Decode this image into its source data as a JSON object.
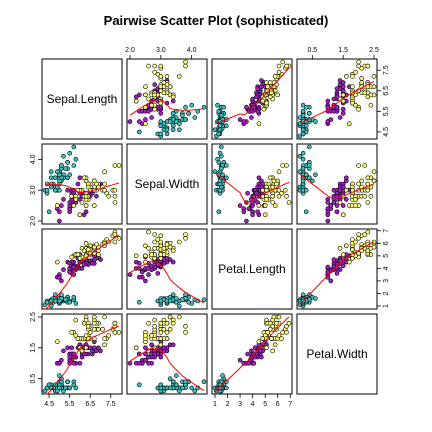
{
  "chart_data": {
    "type": "scatter",
    "title": "Pairwise Scatter Plot (sophisticated)",
    "variables": [
      "Sepal.Length",
      "Sepal.Width",
      "Petal.Length",
      "Petal.Width"
    ],
    "ranges": [
      [
        4.3,
        7.9
      ],
      [
        2.0,
        4.4
      ],
      [
        1.0,
        6.9
      ],
      [
        0.1,
        2.5
      ]
    ],
    "axis_ticks": [
      {
        "side": "bottom",
        "variable": 0,
        "ticks": [
          {
            "value": 4.5,
            "label": "4.5"
          },
          {
            "value": 5.5,
            "label": "5.5"
          },
          {
            "value": 6.5,
            "label": "6.5"
          },
          {
            "value": 7.5,
            "label": "7.5"
          }
        ]
      },
      {
        "side": "bottom",
        "variable": 2,
        "ticks": [
          {
            "value": 1,
            "label": "1"
          },
          {
            "value": 2,
            "label": "2"
          },
          {
            "value": 3,
            "label": "3"
          },
          {
            "value": 4,
            "label": "4"
          },
          {
            "value": 5,
            "label": "5"
          },
          {
            "value": 6,
            "label": "6"
          },
          {
            "value": 7,
            "label": "7"
          }
        ]
      },
      {
        "side": "top",
        "variable": 1,
        "ticks": [
          {
            "value": 2.0,
            "label": "2.0"
          },
          {
            "value": 3.0,
            "label": "3.0"
          },
          {
            "value": 4.0,
            "label": "4.0"
          }
        ]
      },
      {
        "side": "top",
        "variable": 3,
        "ticks": [
          {
            "value": 0.5,
            "label": "0.5"
          },
          {
            "value": 1.5,
            "label": "1.5"
          },
          {
            "value": 2.5,
            "label": "2.5"
          }
        ]
      },
      {
        "side": "left",
        "variable": 1,
        "ticks": [
          {
            "value": 2.0,
            "label": "2.0"
          },
          {
            "value": 3.0,
            "label": "3.0"
          },
          {
            "value": 4.0,
            "label": "4.0"
          }
        ]
      },
      {
        "side": "left",
        "variable": 3,
        "ticks": [
          {
            "value": 0.5,
            "label": "0.5"
          },
          {
            "value": 1.5,
            "label": "1.5"
          },
          {
            "value": 2.5,
            "label": "2.5"
          }
        ]
      },
      {
        "side": "right",
        "variable": 0,
        "ticks": [
          {
            "value": 4.5,
            "label": "4.5"
          },
          {
            "value": 5.5,
            "label": "5.5"
          },
          {
            "value": 6.5,
            "label": "6.5"
          },
          {
            "value": 7.5,
            "label": "7.5"
          }
        ]
      },
      {
        "side": "right",
        "variable": 2,
        "ticks": [
          {
            "value": 1,
            "label": "1"
          },
          {
            "value": 2,
            "label": "2"
          },
          {
            "value": 3,
            "label": "3"
          },
          {
            "value": 4,
            "label": "4"
          },
          {
            "value": 5,
            "label": "5"
          },
          {
            "value": 6,
            "label": "6"
          },
          {
            "value": 7,
            "label": "7"
          }
        ]
      }
    ],
    "groups": [
      {
        "color": "#40c0c0",
        "points": [
          [
            5.1,
            3.5,
            1.4,
            0.2
          ],
          [
            4.9,
            3.0,
            1.4,
            0.2
          ],
          [
            4.7,
            3.2,
            1.3,
            0.2
          ],
          [
            4.6,
            3.1,
            1.5,
            0.2
          ],
          [
            5.0,
            3.6,
            1.4,
            0.2
          ],
          [
            5.4,
            3.9,
            1.7,
            0.4
          ],
          [
            4.6,
            3.4,
            1.4,
            0.3
          ],
          [
            5.0,
            3.4,
            1.5,
            0.2
          ],
          [
            4.4,
            2.9,
            1.4,
            0.2
          ],
          [
            4.9,
            3.1,
            1.5,
            0.1
          ],
          [
            5.4,
            3.7,
            1.5,
            0.2
          ],
          [
            4.8,
            3.4,
            1.6,
            0.2
          ],
          [
            4.8,
            3.0,
            1.4,
            0.1
          ],
          [
            4.3,
            3.0,
            1.1,
            0.1
          ],
          [
            5.8,
            4.0,
            1.2,
            0.2
          ],
          [
            5.7,
            4.4,
            1.5,
            0.4
          ],
          [
            5.4,
            3.9,
            1.3,
            0.4
          ],
          [
            5.1,
            3.5,
            1.4,
            0.3
          ],
          [
            5.7,
            3.8,
            1.7,
            0.3
          ],
          [
            5.1,
            3.8,
            1.5,
            0.3
          ],
          [
            5.4,
            3.4,
            1.7,
            0.2
          ],
          [
            5.1,
            3.7,
            1.5,
            0.4
          ],
          [
            4.6,
            3.6,
            1.0,
            0.2
          ],
          [
            5.1,
            3.3,
            1.7,
            0.5
          ],
          [
            4.8,
            3.4,
            1.9,
            0.2
          ],
          [
            5.0,
            3.0,
            1.6,
            0.2
          ],
          [
            5.0,
            3.4,
            1.6,
            0.4
          ],
          [
            5.2,
            3.5,
            1.5,
            0.2
          ],
          [
            5.2,
            3.4,
            1.4,
            0.2
          ],
          [
            4.7,
            3.2,
            1.6,
            0.2
          ],
          [
            4.8,
            3.1,
            1.6,
            0.2
          ],
          [
            5.4,
            3.4,
            1.5,
            0.4
          ],
          [
            5.2,
            4.1,
            1.5,
            0.1
          ],
          [
            5.5,
            4.2,
            1.4,
            0.2
          ],
          [
            4.9,
            3.1,
            1.5,
            0.2
          ],
          [
            5.0,
            3.2,
            1.2,
            0.2
          ],
          [
            5.5,
            3.5,
            1.3,
            0.2
          ],
          [
            4.9,
            3.6,
            1.4,
            0.1
          ],
          [
            4.4,
            3.0,
            1.3,
            0.2
          ],
          [
            5.1,
            3.4,
            1.5,
            0.2
          ],
          [
            5.0,
            3.5,
            1.3,
            0.3
          ],
          [
            4.5,
            2.3,
            1.3,
            0.3
          ],
          [
            4.4,
            3.2,
            1.3,
            0.2
          ],
          [
            5.0,
            3.5,
            1.6,
            0.6
          ],
          [
            5.1,
            3.8,
            1.9,
            0.4
          ],
          [
            4.8,
            3.0,
            1.4,
            0.3
          ],
          [
            5.1,
            3.8,
            1.6,
            0.2
          ],
          [
            4.6,
            3.2,
            1.4,
            0.2
          ],
          [
            5.3,
            3.7,
            1.5,
            0.2
          ],
          [
            5.0,
            3.3,
            1.4,
            0.2
          ]
        ]
      },
      {
        "color": "#a020c0",
        "points": [
          [
            7.0,
            3.2,
            4.7,
            1.4
          ],
          [
            6.4,
            3.2,
            4.5,
            1.5
          ],
          [
            6.9,
            3.1,
            4.9,
            1.5
          ],
          [
            5.5,
            2.3,
            4.0,
            1.3
          ],
          [
            6.5,
            2.8,
            4.6,
            1.5
          ],
          [
            5.7,
            2.8,
            4.5,
            1.3
          ],
          [
            6.3,
            3.3,
            4.7,
            1.6
          ],
          [
            4.9,
            2.4,
            3.3,
            1.0
          ],
          [
            6.6,
            2.9,
            4.6,
            1.3
          ],
          [
            5.2,
            2.7,
            3.9,
            1.4
          ],
          [
            5.0,
            2.0,
            3.5,
            1.0
          ],
          [
            5.9,
            3.0,
            4.2,
            1.5
          ],
          [
            6.0,
            2.2,
            4.0,
            1.0
          ],
          [
            6.1,
            2.9,
            4.7,
            1.4
          ],
          [
            5.6,
            2.9,
            3.6,
            1.3
          ],
          [
            6.7,
            3.1,
            4.4,
            1.4
          ],
          [
            5.6,
            3.0,
            4.5,
            1.5
          ],
          [
            5.8,
            2.7,
            4.1,
            1.0
          ],
          [
            6.2,
            2.2,
            4.5,
            1.5
          ],
          [
            5.6,
            2.5,
            3.9,
            1.1
          ],
          [
            5.9,
            3.2,
            4.8,
            1.8
          ],
          [
            6.1,
            2.8,
            4.0,
            1.3
          ],
          [
            6.3,
            2.5,
            4.9,
            1.5
          ],
          [
            6.1,
            2.8,
            4.7,
            1.2
          ],
          [
            6.4,
            2.9,
            4.3,
            1.3
          ],
          [
            6.6,
            3.0,
            4.4,
            1.4
          ],
          [
            6.8,
            2.8,
            4.8,
            1.4
          ],
          [
            6.7,
            3.0,
            5.0,
            1.7
          ],
          [
            6.0,
            2.9,
            4.5,
            1.5
          ],
          [
            5.7,
            2.6,
            3.5,
            1.0
          ],
          [
            5.5,
            2.4,
            3.8,
            1.1
          ],
          [
            5.5,
            2.4,
            3.7,
            1.0
          ],
          [
            5.8,
            2.7,
            3.9,
            1.2
          ],
          [
            6.0,
            2.7,
            5.1,
            1.6
          ],
          [
            5.4,
            3.0,
            4.5,
            1.5
          ],
          [
            6.0,
            3.4,
            4.5,
            1.6
          ],
          [
            6.7,
            3.1,
            4.7,
            1.5
          ],
          [
            6.3,
            2.3,
            4.4,
            1.3
          ],
          [
            5.6,
            3.0,
            4.1,
            1.3
          ],
          [
            5.5,
            2.5,
            4.0,
            1.3
          ],
          [
            5.5,
            2.6,
            4.4,
            1.2
          ],
          [
            6.1,
            3.0,
            4.6,
            1.4
          ],
          [
            5.8,
            2.6,
            4.0,
            1.2
          ],
          [
            5.0,
            2.3,
            3.3,
            1.0
          ],
          [
            5.6,
            2.7,
            4.2,
            1.3
          ],
          [
            5.7,
            3.0,
            4.2,
            1.2
          ],
          [
            5.7,
            2.9,
            4.2,
            1.3
          ],
          [
            6.2,
            2.9,
            4.3,
            1.3
          ],
          [
            5.1,
            2.5,
            3.0,
            1.1
          ],
          [
            5.7,
            2.8,
            4.1,
            1.3
          ]
        ]
      },
      {
        "color": "#ffff80",
        "points": [
          [
            6.3,
            3.3,
            6.0,
            2.5
          ],
          [
            5.8,
            2.7,
            5.1,
            1.9
          ],
          [
            7.1,
            3.0,
            5.9,
            2.1
          ],
          [
            6.3,
            2.9,
            5.6,
            1.8
          ],
          [
            6.5,
            3.0,
            5.8,
            2.2
          ],
          [
            7.6,
            3.0,
            6.6,
            2.1
          ],
          [
            4.9,
            2.5,
            4.5,
            1.7
          ],
          [
            7.3,
            2.9,
            6.3,
            1.8
          ],
          [
            6.7,
            2.5,
            5.8,
            1.8
          ],
          [
            7.2,
            3.6,
            6.1,
            2.5
          ],
          [
            6.5,
            3.2,
            5.1,
            2.0
          ],
          [
            6.4,
            2.7,
            5.3,
            1.9
          ],
          [
            6.8,
            3.0,
            5.5,
            2.1
          ],
          [
            5.7,
            2.5,
            5.0,
            2.0
          ],
          [
            5.8,
            2.8,
            5.1,
            2.4
          ],
          [
            6.4,
            3.2,
            5.3,
            2.3
          ],
          [
            6.5,
            3.0,
            5.5,
            1.8
          ],
          [
            7.7,
            3.8,
            6.7,
            2.2
          ],
          [
            7.7,
            2.6,
            6.9,
            2.3
          ],
          [
            6.0,
            2.2,
            5.0,
            1.5
          ],
          [
            6.9,
            3.2,
            5.7,
            2.3
          ],
          [
            5.6,
            2.8,
            4.9,
            2.0
          ],
          [
            7.7,
            2.8,
            6.7,
            2.0
          ],
          [
            6.3,
            2.7,
            4.9,
            1.8
          ],
          [
            6.7,
            3.3,
            5.7,
            2.1
          ],
          [
            7.2,
            3.2,
            6.0,
            1.8
          ],
          [
            6.2,
            2.8,
            4.8,
            1.8
          ],
          [
            6.1,
            3.0,
            4.9,
            1.8
          ],
          [
            6.4,
            2.8,
            5.6,
            2.1
          ],
          [
            7.2,
            3.0,
            5.8,
            1.6
          ],
          [
            7.4,
            2.8,
            6.1,
            1.9
          ],
          [
            7.9,
            3.8,
            6.4,
            2.0
          ],
          [
            6.4,
            2.8,
            5.6,
            2.2
          ],
          [
            6.3,
            2.8,
            5.1,
            1.5
          ],
          [
            6.1,
            2.6,
            5.6,
            1.4
          ],
          [
            7.7,
            3.0,
            6.1,
            2.3
          ],
          [
            6.3,
            3.4,
            5.6,
            2.4
          ],
          [
            6.4,
            3.1,
            5.5,
            1.8
          ],
          [
            6.0,
            3.0,
            4.8,
            1.8
          ],
          [
            6.9,
            3.1,
            5.4,
            2.1
          ],
          [
            6.7,
            3.1,
            5.6,
            2.4
          ],
          [
            6.9,
            3.1,
            5.1,
            2.3
          ],
          [
            5.8,
            2.7,
            5.1,
            1.9
          ],
          [
            6.8,
            3.2,
            5.9,
            2.3
          ],
          [
            6.7,
            3.3,
            5.7,
            2.5
          ],
          [
            6.7,
            3.0,
            5.2,
            2.3
          ],
          [
            6.3,
            2.5,
            5.0,
            1.9
          ],
          [
            6.5,
            3.0,
            5.2,
            2.0
          ],
          [
            6.2,
            3.4,
            5.4,
            2.3
          ],
          [
            5.9,
            3.0,
            5.1,
            1.8
          ]
        ]
      }
    ],
    "smoother": {
      "color": "#ff0000",
      "method": "lowess"
    },
    "grid": false,
    "legend": "none"
  }
}
